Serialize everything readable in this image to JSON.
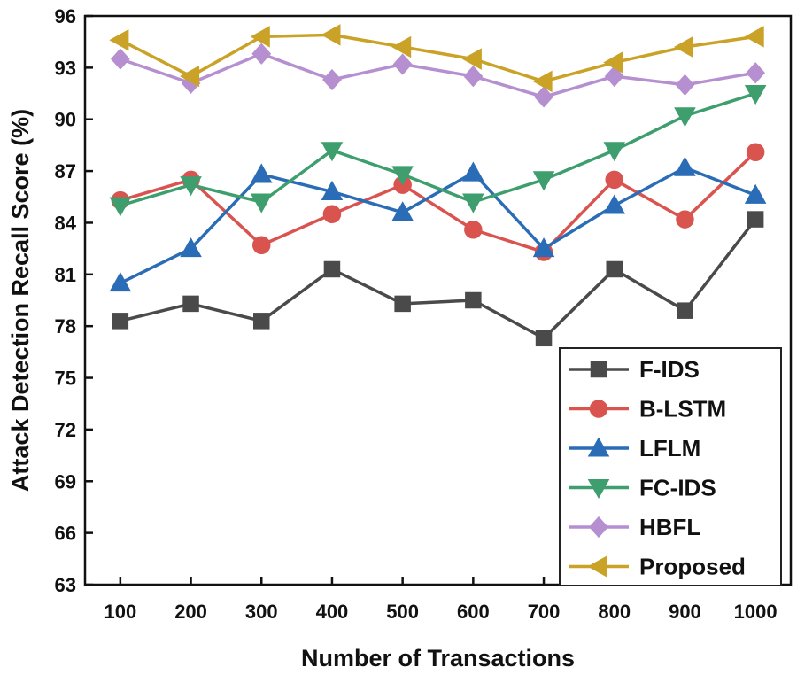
{
  "chart_data": {
    "type": "line",
    "title": "",
    "xlabel": "Number of Transactions",
    "ylabel": "Attack Detection Recall Score (%)",
    "categories": [
      "100",
      "200",
      "300",
      "400",
      "500",
      "600",
      "700",
      "800",
      "900",
      "1000"
    ],
    "ylim": [
      63,
      96
    ],
    "yticks": [
      "63",
      "66",
      "69",
      "72",
      "75",
      "78",
      "81",
      "84",
      "87",
      "90",
      "93",
      "96"
    ],
    "grid": false,
    "legend_position": "bottom-right",
    "series": [
      {
        "name": "F-IDS",
        "color": "#4a4a4a",
        "marker": "square",
        "values": [
          78.3,
          79.3,
          78.3,
          81.3,
          79.3,
          79.5,
          77.3,
          81.3,
          78.9,
          84.2
        ]
      },
      {
        "name": "B-LSTM",
        "color": "#d9534f",
        "marker": "circle",
        "values": [
          85.3,
          86.5,
          82.7,
          84.5,
          86.2,
          83.6,
          82.3,
          86.5,
          84.2,
          88.1
        ]
      },
      {
        "name": "LFLM",
        "color": "#2a6cb5",
        "marker": "triangle-up",
        "values": [
          80.5,
          82.5,
          86.8,
          85.8,
          84.6,
          86.9,
          82.5,
          85.0,
          87.2,
          85.6
        ]
      },
      {
        "name": "FC-IDS",
        "color": "#3e9e6e",
        "marker": "triangle-down",
        "values": [
          85.0,
          86.2,
          85.2,
          88.2,
          86.8,
          85.2,
          86.5,
          88.2,
          90.2,
          91.5
        ]
      },
      {
        "name": "HBFL",
        "color": "#b58fd0",
        "marker": "diamond",
        "values": [
          93.5,
          92.1,
          93.8,
          92.3,
          93.2,
          92.5,
          91.3,
          92.5,
          92.0,
          92.7
        ]
      },
      {
        "name": "Proposed",
        "color": "#c9a227",
        "marker": "triangle-left",
        "values": [
          94.6,
          92.5,
          94.8,
          94.9,
          94.2,
          93.5,
          92.2,
          93.3,
          94.2,
          94.8
        ]
      }
    ]
  }
}
